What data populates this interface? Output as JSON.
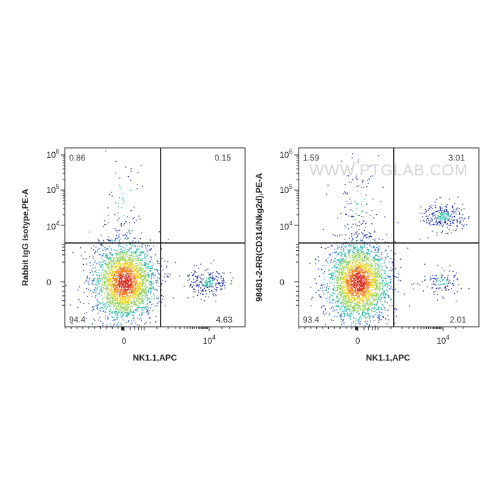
{
  "watermark": "WWW.PTGLAB.COM",
  "colors": {
    "frame": "#222222",
    "gate": "#111111",
    "density_low": "#1a2a9c",
    "density_mid": "#1fb3a0",
    "density_high": "#d62b1f"
  },
  "chart_data": [
    {
      "type": "scatter",
      "subtype": "flow-cytometry-density",
      "xlabel": "NK1.1,APC",
      "ylabel": "Rabbit IgG Isotype,PE-A",
      "x_ticks": [
        "0",
        "10^4"
      ],
      "y_ticks": [
        "0",
        "10^4",
        "10^5",
        "10^6"
      ],
      "quadrants": {
        "upper_left": "0.86",
        "upper_right": "0.15",
        "lower_left": "94.4",
        "lower_right": "4.63"
      },
      "populations": [
        {
          "name": "",
          "x": 0,
          "y": 0,
          "count": 2600,
          "density": "high"
        },
        {
          "name": "",
          "x": 9000,
          "y": 0,
          "count": 240,
          "density": "low"
        },
        {
          "name": "",
          "x": 0,
          "y": 60000,
          "count": 60,
          "density": "sparse"
        }
      ]
    },
    {
      "type": "scatter",
      "subtype": "flow-cytometry-density",
      "xlabel": "NK1.1,APC",
      "ylabel": "98481-2-RR(CD314/Nkg2d),PE-A",
      "x_ticks": [
        "0",
        "10^4"
      ],
      "y_ticks": [
        "0",
        "10^4",
        "10^5",
        "10^6"
      ],
      "quadrants": {
        "upper_left": "1.59",
        "upper_right": "3.01",
        "lower_left": "93.4",
        "lower_right": "2.01"
      },
      "populations": [
        {
          "name": "",
          "x": 0,
          "y": 0,
          "count": 2600,
          "density": "high"
        },
        {
          "name": "",
          "x": 10000,
          "y": 18000,
          "count": 260,
          "density": "low"
        },
        {
          "name": "",
          "x": 9000,
          "y": 0,
          "count": 110,
          "density": "low"
        },
        {
          "name": "",
          "x": 0,
          "y": 40000,
          "count": 130,
          "density": "sparse"
        }
      ]
    }
  ]
}
